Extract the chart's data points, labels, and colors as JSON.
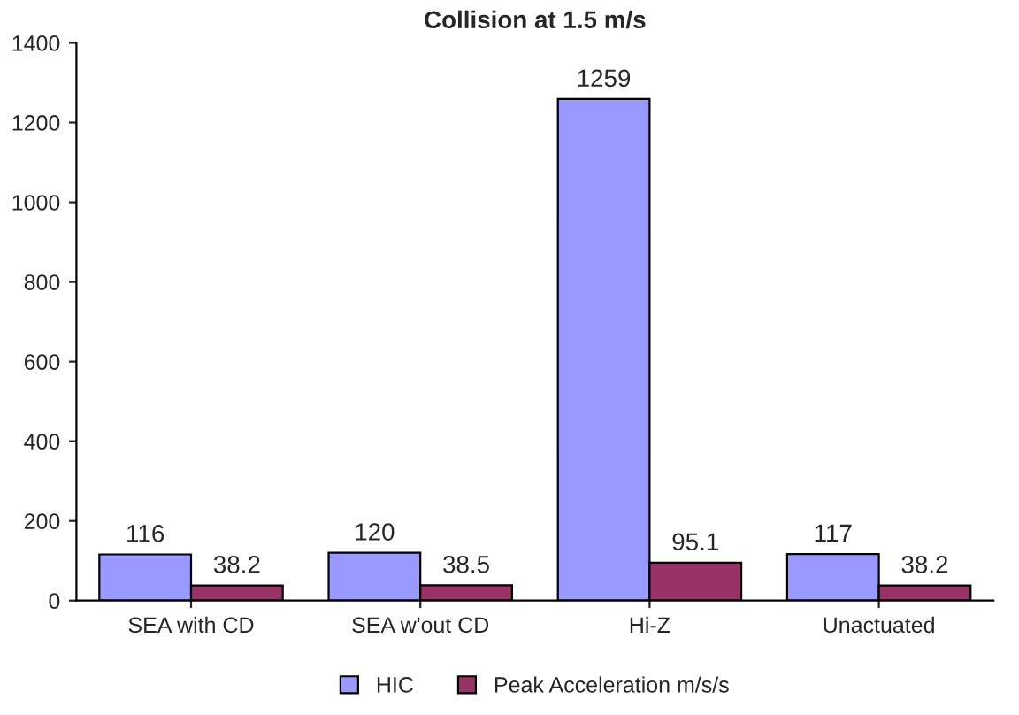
{
  "chart_data": {
    "type": "bar",
    "title": "Collision at 1.5 m/s",
    "categories": [
      "SEA with CD",
      "SEA w'out CD",
      "Hi-Z",
      "Unactuated"
    ],
    "series": [
      {
        "name": "HIC",
        "color": "#9999ff",
        "values": [
          116,
          120,
          1259,
          117
        ]
      },
      {
        "name": "Peak Acceleration m/s/s",
        "color": "#993366",
        "values": [
          38.2,
          38.5,
          95.1,
          38.2
        ]
      }
    ],
    "ylim": [
      0,
      1400
    ],
    "yticks": [
      0,
      200,
      400,
      600,
      800,
      1000,
      1200,
      1400
    ],
    "data_labels": true,
    "legend": "bottom",
    "grid": false
  }
}
